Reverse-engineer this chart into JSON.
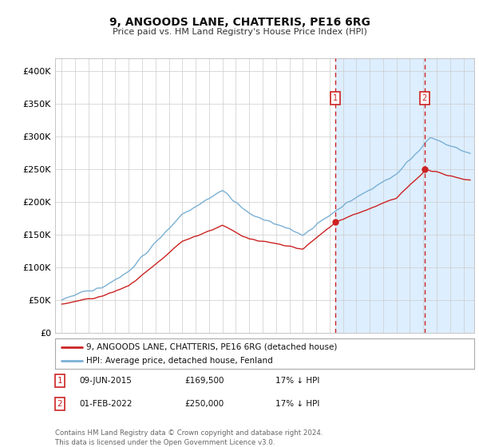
{
  "title": "9, ANGOODS LANE, CHATTERIS, PE16 6RG",
  "subtitle": "Price paid vs. HM Land Registry's House Price Index (HPI)",
  "hpi_label": "HPI: Average price, detached house, Fenland",
  "property_label": "9, ANGOODS LANE, CHATTERIS, PE16 6RG (detached house)",
  "annotation1": {
    "date": "09-JUN-2015",
    "price": "£169,500",
    "pct": "17% ↓ HPI",
    "label": "1"
  },
  "annotation2": {
    "date": "01-FEB-2022",
    "price": "£250,000",
    "pct": "17% ↓ HPI",
    "label": "2"
  },
  "footer": "Contains HM Land Registry data © Crown copyright and database right 2024.\nThis data is licensed under the Open Government Licence v3.0.",
  "ylim": [
    0,
    420000
  ],
  "yticks": [
    0,
    50000,
    100000,
    150000,
    200000,
    250000,
    300000,
    350000,
    400000
  ],
  "ytick_labels": [
    "£0",
    "£50K",
    "£100K",
    "£150K",
    "£200K",
    "£250K",
    "£300K",
    "£350K",
    "£400K"
  ],
  "hpi_color": "#7ab0d4",
  "property_color": "#cc2222",
  "plot_bg": "#ffffff",
  "vline_color": "#cc2222",
  "shade_color": "#ddeeff",
  "annotation_box_color": "#cc2222",
  "marker1_x": 2015.44,
  "marker2_x": 2022.08,
  "marker1_y": 169500,
  "marker2_y": 250000,
  "xmin": 1994.5,
  "xmax": 2025.8,
  "xtick_years": [
    1995,
    1996,
    1997,
    1998,
    1999,
    2000,
    2001,
    2002,
    2003,
    2004,
    2005,
    2006,
    2007,
    2008,
    2009,
    2010,
    2011,
    2012,
    2013,
    2014,
    2015,
    2016,
    2017,
    2018,
    2019,
    2020,
    2021,
    2022,
    2023,
    2024,
    2025
  ]
}
